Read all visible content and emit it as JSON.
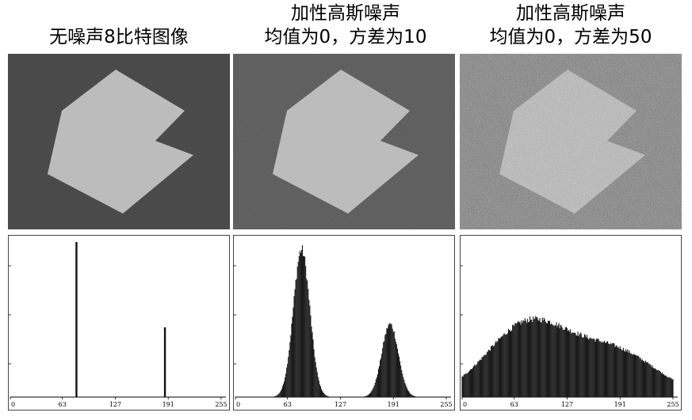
{
  "columns": [
    {
      "title_lines": [
        "无噪声8比特图像"
      ],
      "background": "#4a4a4a",
      "shape": "#bcbcbc",
      "noise_sigma": 0
    },
    {
      "title_lines": [
        "加性高斯噪声",
        "均值为0，方差为10"
      ],
      "background": "#4a4a4a",
      "shape": "#bcbcbc",
      "noise_sigma": 10
    },
    {
      "title_lines": [
        "加性高斯噪声",
        "均值为0，方差为50"
      ],
      "background": "#4a4a4a",
      "shape": "#bcbcbc",
      "noise_sigma": 50
    }
  ],
  "chart_data": [
    {
      "type": "bar",
      "xlim": [
        0,
        255
      ],
      "x_ticks": [
        "0",
        "63",
        "127",
        "191",
        "255"
      ],
      "series": [
        {
          "x": [
            63,
            63,
            63,
            63
          ],
          "values": [
            0,
            0,
            0,
            0
          ]
        },
        {
          "x": [
            80,
            187
          ],
          "values": [
            1.0,
            0.45
          ]
        }
      ]
    },
    {
      "type": "bar",
      "xlim": [
        0,
        255
      ],
      "x_ticks": [
        "0",
        "63",
        "127",
        "191",
        "255"
      ],
      "series": [
        {
          "gaussians": [
            {
              "mean": 80,
              "sd": 10,
              "peak": 0.95
            },
            {
              "mean": 187,
              "sd": 10,
              "peak": 0.47
            }
          ]
        }
      ]
    },
    {
      "type": "bar",
      "xlim": [
        0,
        255
      ],
      "x_ticks": [
        "0",
        "63",
        "127",
        "191",
        "255"
      ],
      "series": [
        {
          "gaussians": [
            {
              "mean": 80,
              "sd": 50,
              "peak": 0.47
            },
            {
              "mean": 187,
              "sd": 50,
              "peak": 0.28
            }
          ]
        }
      ]
    }
  ]
}
